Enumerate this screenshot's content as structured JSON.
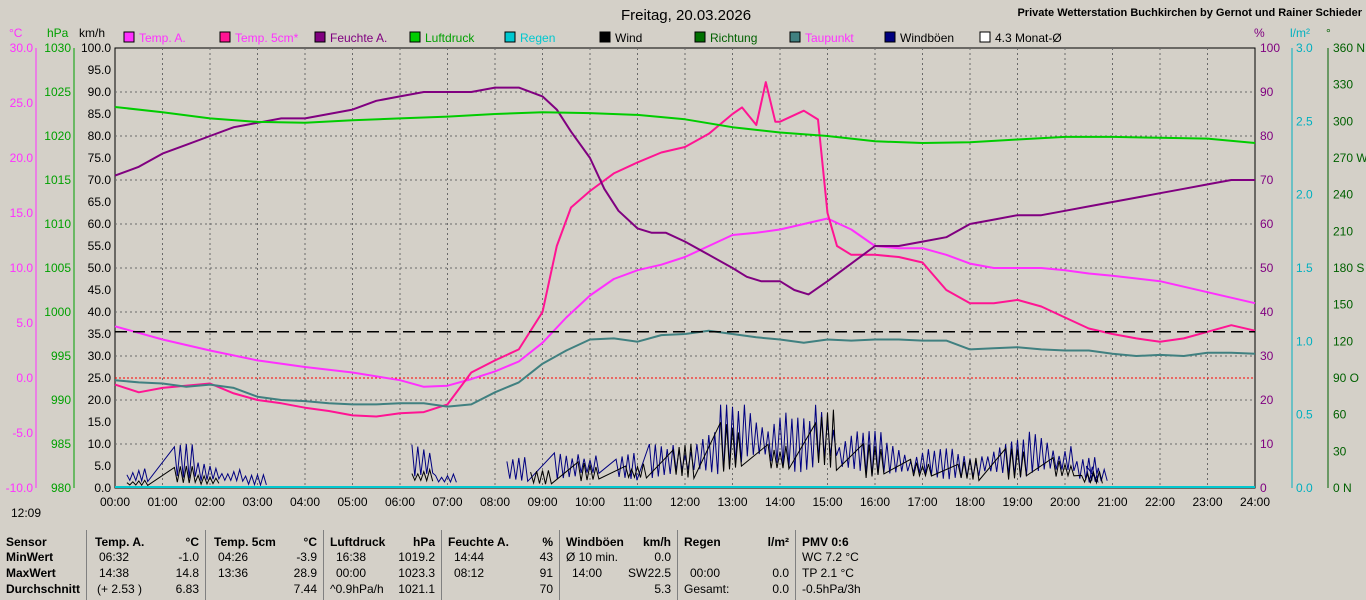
{
  "title": "Freitag, 20.03.2026",
  "source": "Private Wetterstation Buchkirchen by Gernot und Rainer Schieder",
  "timestamp": "12:09",
  "colors": {
    "temp_air": "#ff30ff",
    "temp_5cm": "#ff1493",
    "humidity": "#800080",
    "pressure": "#00cc00",
    "rain": "#00c8d0",
    "wind": "#000000",
    "direction": "#007000",
    "dewpoint": "#408080",
    "gusts": "#000080",
    "avg": "#000000"
  },
  "chart_data": {
    "type": "line",
    "title": "Freitag, 20.03.2026",
    "x_ticks": [
      "00:00",
      "01:00",
      "02:00",
      "03:00",
      "04:00",
      "05:00",
      "06:00",
      "07:00",
      "08:00",
      "09:00",
      "10:00",
      "11:00",
      "12:00",
      "13:00",
      "14:00",
      "15:00",
      "16:00",
      "17:00",
      "18:00",
      "19:00",
      "20:00",
      "21:00",
      "22:00",
      "23:00",
      "24:00"
    ],
    "axes": {
      "temp_c": {
        "unit": "°C",
        "range": [
          -10,
          30
        ],
        "ticks": [
          "30.0",
          "25.0",
          "20.0",
          "15.0",
          "10.0",
          "5.0",
          "0.0",
          "-5.0",
          "-10.0"
        ]
      },
      "pressure_hpa": {
        "unit": "hPa",
        "range": [
          980,
          1030
        ],
        "ticks": [
          "1030",
          "1025",
          "1020",
          "1015",
          "1010",
          "1005",
          "1000",
          "995",
          "990",
          "985",
          "980"
        ]
      },
      "wind_kmh": {
        "unit": "km/h",
        "range": [
          0,
          100
        ],
        "ticks": [
          "100.0",
          "95.0",
          "90.0",
          "85.0",
          "80.0",
          "75.0",
          "70.0",
          "65.0",
          "60.0",
          "55.0",
          "50.0",
          "45.0",
          "40.0",
          "35.0",
          "30.0",
          "25.0",
          "20.0",
          "15.0",
          "10.0",
          "5.0",
          "0.0"
        ]
      },
      "humidity_pct": {
        "unit": "%",
        "range": [
          0,
          100
        ],
        "ticks": [
          "100",
          "90",
          "80",
          "70",
          "60",
          "50",
          "40",
          "30",
          "20",
          "10",
          "0"
        ]
      },
      "rain_lm2": {
        "unit": "l/m²",
        "range": [
          0,
          3
        ],
        "ticks": [
          "3.0",
          "2.5",
          "2.0",
          "1.5",
          "1.0",
          "0.5",
          "0.0"
        ]
      },
      "direction_deg": {
        "unit": "°",
        "range": [
          0,
          360
        ],
        "ticks": [
          "360 N",
          "330",
          "300",
          "270 W",
          "240",
          "210",
          "180 S",
          "150",
          "120",
          "90 O",
          "60",
          "30",
          "0 N"
        ]
      }
    },
    "legend": [
      "Temp. A.",
      "Temp. 5cm*",
      "Feuchte A.",
      "Luftdruck",
      "Regen",
      "Wind",
      "Richtung",
      "Taupunkt",
      "Windböen",
      "4.3 Monat-Ø"
    ],
    "series": [
      {
        "name": "Temp. A.",
        "axis": "temp_c",
        "x": [
          0,
          1,
          2,
          3,
          4,
          5,
          6,
          6.5,
          7,
          7.5,
          8,
          8.5,
          9,
          9.5,
          10,
          10.5,
          11,
          11.5,
          12,
          12.5,
          13,
          13.5,
          14,
          14.5,
          15,
          15.5,
          16,
          16.5,
          17,
          17.5,
          18,
          18.5,
          19,
          19.5,
          20,
          20.5,
          21,
          22,
          23,
          24
        ],
        "y": [
          4.7,
          3.5,
          2.5,
          1.6,
          1.0,
          0.5,
          -0.2,
          -0.8,
          -0.7,
          -0.1,
          0.6,
          1.5,
          3.2,
          5.5,
          7.5,
          9.0,
          9.8,
          10.3,
          11.0,
          12.0,
          13.0,
          13.2,
          13.5,
          14.0,
          14.5,
          13.5,
          12.0,
          11.8,
          11.8,
          11.2,
          10.4,
          10.0,
          10.0,
          10.0,
          9.8,
          9.5,
          9.3,
          8.8,
          7.8,
          6.8
        ]
      },
      {
        "name": "Temp. 5cm*",
        "axis": "temp_c",
        "x": [
          0,
          0.5,
          1,
          2,
          2.5,
          3,
          3.5,
          4,
          4.5,
          5,
          5.5,
          6,
          6.5,
          7,
          7.5,
          8,
          8.5,
          9,
          9.3,
          9.6,
          10,
          10.5,
          11,
          11.5,
          12,
          12.5,
          13,
          13.2,
          13.5,
          13.7,
          13.9,
          14,
          14.5,
          14.8,
          15,
          15.2,
          15.5,
          16,
          16.5,
          17,
          17.5,
          18,
          18.5,
          19,
          19.5,
          20,
          20.5,
          21,
          21.5,
          22,
          22.5,
          23,
          23.5,
          24
        ],
        "y": [
          -0.6,
          -1.3,
          -0.9,
          -0.5,
          -1.4,
          -2.0,
          -2.3,
          -2.7,
          -3.0,
          -3.4,
          -3.5,
          -3.2,
          -3.1,
          -2.4,
          0.5,
          1.6,
          2.6,
          6.0,
          12.0,
          15.5,
          17.0,
          18.6,
          19.6,
          20.5,
          21.0,
          22.2,
          24.0,
          24.6,
          23.0,
          26.9,
          23.3,
          23.3,
          24.3,
          23.5,
          15.0,
          12.0,
          11.2,
          11.2,
          11.0,
          10.5,
          8.0,
          6.8,
          6.8,
          7.1,
          6.5,
          5.5,
          4.5,
          4.0,
          3.6,
          3.3,
          3.6,
          4.2,
          4.8,
          4.3
        ]
      },
      {
        "name": "Feuchte A.",
        "axis": "humidity_pct",
        "x": [
          0,
          0.5,
          1,
          1.5,
          2,
          2.5,
          3,
          3.5,
          4,
          4.5,
          5,
          5.5,
          6,
          6.5,
          7,
          7.5,
          8,
          8.5,
          9,
          9.3,
          9.6,
          10,
          10.3,
          10.6,
          11,
          11.3,
          11.6,
          12,
          12.5,
          13,
          13.3,
          13.6,
          14,
          14.3,
          14.6,
          15,
          15.5,
          16,
          16.5,
          17,
          17.5,
          18,
          18.5,
          19,
          19.5,
          20,
          20.5,
          21,
          21.5,
          22,
          22.5,
          23,
          23.5,
          24
        ],
        "y": [
          71,
          73,
          76,
          78,
          80,
          82,
          83,
          84,
          84,
          85,
          86,
          88,
          89,
          90,
          90,
          90,
          91,
          91,
          89,
          86,
          81,
          75,
          68,
          63,
          59,
          58,
          58,
          56,
          53,
          50,
          48,
          47,
          47,
          45,
          44,
          47,
          51,
          55,
          55,
          56,
          57,
          60,
          61,
          62,
          62,
          63,
          64,
          65,
          66,
          67,
          68,
          69,
          70,
          70
        ]
      },
      {
        "name": "Luftdruck",
        "axis": "pressure_hpa",
        "x": [
          0,
          1,
          2,
          3,
          4,
          5,
          6,
          7,
          8,
          9,
          10,
          11,
          12,
          13,
          14,
          15,
          16,
          17,
          18,
          19,
          20,
          21,
          22,
          23,
          24
        ],
        "y": [
          1023.3,
          1022.7,
          1022.0,
          1021.6,
          1021.5,
          1021.8,
          1022.0,
          1022.2,
          1022.5,
          1022.7,
          1022.6,
          1022.4,
          1021.9,
          1021.0,
          1020.4,
          1020.0,
          1019.4,
          1019.2,
          1019.3,
          1019.6,
          1019.9,
          1019.9,
          1019.8,
          1019.7,
          1019.2
        ]
      },
      {
        "name": "Taupunkt",
        "axis": "temp_c",
        "x": [
          0,
          0.5,
          1,
          1.5,
          2,
          2.5,
          3,
          3.5,
          4,
          4.5,
          5,
          5.5,
          6,
          6.5,
          7,
          7.5,
          8,
          8.5,
          9,
          9.5,
          10,
          10.5,
          11,
          11.5,
          12,
          12.5,
          13,
          13.5,
          14,
          14.5,
          15,
          15.5,
          16,
          16.5,
          17,
          17.5,
          18,
          18.5,
          19,
          19.5,
          20,
          20.5,
          21,
          21.5,
          22,
          22.5,
          23,
          23.5,
          24
        ],
        "y": [
          -0.2,
          -0.4,
          -0.5,
          -0.8,
          -0.6,
          -0.9,
          -1.7,
          -2.0,
          -2.1,
          -2.3,
          -2.4,
          -2.4,
          -2.3,
          -2.3,
          -2.6,
          -2.4,
          -1.3,
          -0.4,
          1.3,
          2.5,
          3.5,
          3.6,
          3.3,
          3.9,
          4.0,
          4.3,
          4.0,
          3.7,
          3.5,
          3.2,
          3.5,
          3.4,
          3.5,
          3.5,
          3.4,
          3.4,
          2.6,
          2.7,
          2.8,
          2.6,
          2.5,
          2.5,
          2.2,
          2.0,
          2.1,
          2.0,
          2.3,
          2.3,
          2.2
        ]
      },
      {
        "name": "4.3 Monat-Ø",
        "axis": "wind_kmh",
        "x": [
          0,
          24
        ],
        "y": [
          35.5,
          35.5
        ]
      }
    ],
    "wind": {
      "axis": "wind_kmh",
      "gust_peaks": [
        [
          0.5,
          5
        ],
        [
          1.5,
          10
        ],
        [
          2,
          6
        ],
        [
          2.5,
          5
        ],
        [
          3,
          3
        ],
        [
          6.5,
          10
        ],
        [
          7,
          4
        ],
        [
          8.5,
          7
        ],
        [
          9.5,
          8
        ],
        [
          10,
          10
        ],
        [
          10.8,
          8
        ],
        [
          11.5,
          10
        ],
        [
          12,
          12
        ],
        [
          12.5,
          13
        ],
        [
          13,
          19
        ],
        [
          13.5,
          22
        ],
        [
          14,
          18
        ],
        [
          14.5,
          16
        ],
        [
          15,
          21
        ],
        [
          15.5,
          14
        ],
        [
          16,
          13
        ],
        [
          16.5,
          11
        ],
        [
          17,
          10
        ],
        [
          17.5,
          9
        ],
        [
          18,
          8
        ],
        [
          18.5,
          11
        ],
        [
          19,
          11
        ],
        [
          19.5,
          13
        ],
        [
          20,
          12
        ],
        [
          20.5,
          7
        ],
        [
          20.7,
          5
        ]
      ],
      "wind_peaks": [
        [
          0.5,
          2
        ],
        [
          1.5,
          5
        ],
        [
          2,
          3
        ],
        [
          6.5,
          5
        ],
        [
          9,
          4
        ],
        [
          10,
          6
        ],
        [
          11,
          7
        ],
        [
          12,
          10
        ],
        [
          13,
          15
        ],
        [
          14,
          13
        ],
        [
          15,
          18
        ],
        [
          16,
          10
        ],
        [
          17,
          8
        ],
        [
          18,
          7
        ],
        [
          19,
          9
        ],
        [
          20,
          8
        ],
        [
          20.6,
          4
        ]
      ]
    },
    "reference_lines": {
      "temp_zero": 0.0
    }
  },
  "stats": {
    "headers": {
      "sensor": "Sensor",
      "temp_a": "Temp. A.",
      "temp_a_unit": "°C",
      "temp5": "Temp. 5cm",
      "temp5_unit": "°C",
      "luft": "Luftdruck",
      "luft_unit": "hPa",
      "feuchte": "Feuchte A.",
      "feuchte_unit": "%",
      "wind": "Windböen",
      "wind_unit": "km/h",
      "regen": "Regen",
      "regen_unit": "l/m²",
      "pmv": "PMV 0:6"
    },
    "rows": {
      "min": {
        "label": "MinWert",
        "temp_a_time": "06:32",
        "temp_a_val": "-1.0",
        "temp5_time": "04:26",
        "temp5_val": "-3.9",
        "luft_time": "16:38",
        "luft_val": "1019.2",
        "feuchte_time": "14:44",
        "feuchte_val": "43",
        "wind_time": "Ø 10 min.",
        "wind_val": "0.0",
        "regen_time": "",
        "regen_val": "",
        "pmv": "WC 7.2 °C"
      },
      "max": {
        "label": "MaxWert",
        "temp_a_time": "14:38",
        "temp_a_val": "14.8",
        "temp5_time": "13:36",
        "temp5_val": "28.9",
        "luft_time": "00:00",
        "luft_val": "1023.3",
        "feuchte_time": "08:12",
        "feuchte_val": "91",
        "wind_time": "14:00",
        "wind_dir": "SW",
        "wind_val": "22.5",
        "regen_time": "00:00",
        "regen_val": "0.0",
        "pmv": "TP 2.1 °C"
      },
      "avg": {
        "label": "Durchschnitt",
        "temp_a_time": "(+ 2.53 )",
        "temp_a_val": "6.83",
        "temp5_time": "",
        "temp5_val": "7.44",
        "luft_time": "^0.9hPa/h",
        "luft_val": "1021.1",
        "feuchte_time": "",
        "feuchte_val": "70",
        "wind_time": "",
        "wind_val": "5.3",
        "regen_time": "Gesamt:",
        "regen_val": "0.0",
        "pmv": "-0.5hPa/3h"
      }
    }
  }
}
